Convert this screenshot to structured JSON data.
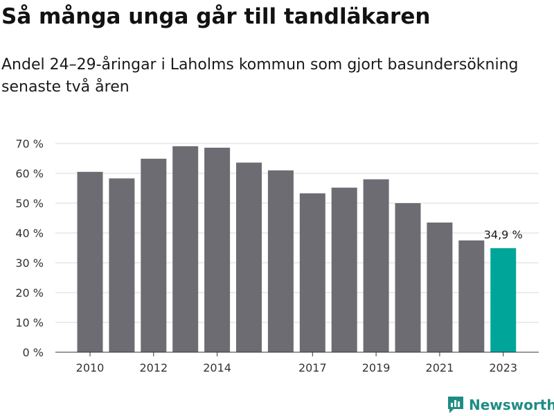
{
  "header": {
    "title": "Så många unga går till tandläkaren",
    "subtitle": "Andel 24–29-åringar i Laholms kommun som gjort basundersökning senaste två åren"
  },
  "brand": {
    "name": "Newsworthy",
    "color": "#1f8c84",
    "icon": "newsworthy-logo-icon"
  },
  "colors": {
    "bar": "#6d6c72",
    "highlight": "#00a59a",
    "grid": "#d9d9d9",
    "axis": "#333333"
  },
  "chart_data": {
    "type": "bar",
    "title": "Så många unga går till tandläkaren",
    "subtitle": "Andel 24–29-åringar i Laholms kommun som gjort basundersökning senaste två åren",
    "xlabel": "",
    "ylabel": "",
    "categories": [
      "2010",
      "2011",
      "2012",
      "2013",
      "2014",
      "2015",
      "2016",
      "2017",
      "2018",
      "2019",
      "2020",
      "2021",
      "2022",
      "2023"
    ],
    "values": [
      60.5,
      58.3,
      64.9,
      69.1,
      68.6,
      63.6,
      61.0,
      53.3,
      55.2,
      58.0,
      50.0,
      43.5,
      37.5,
      34.9
    ],
    "x_tick_labels": [
      "2010",
      "2012",
      "2014",
      "2017",
      "2019",
      "2021",
      "2023"
    ],
    "y_ticks": [
      0,
      10,
      20,
      30,
      40,
      50,
      60,
      70
    ],
    "y_tick_labels": [
      "0 %",
      "10 %",
      "20 %",
      "30 %",
      "40 %",
      "50 %",
      "60 %",
      "70 %"
    ],
    "ylim": [
      0,
      70
    ],
    "grid": true,
    "legend": "none",
    "highlight_category": "2023",
    "annotation": {
      "category": "2023",
      "label": "34,9 %"
    }
  }
}
